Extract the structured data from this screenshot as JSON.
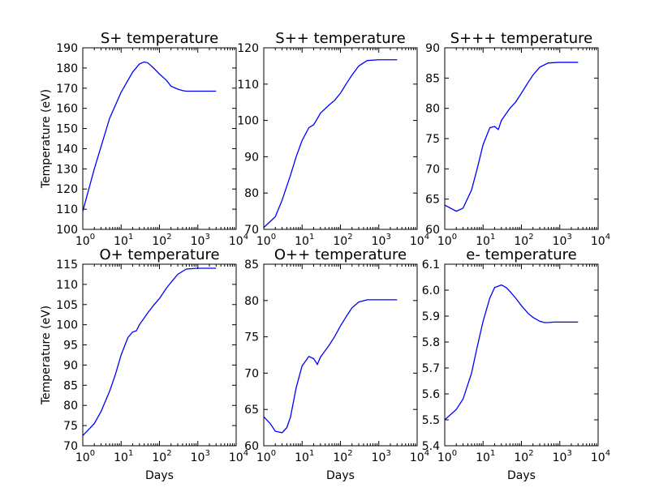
{
  "chart_data": [
    {
      "type": "line",
      "title": "S+ temperature",
      "ylabel": "Temperature (eV)",
      "xlabel": "",
      "xscale": "log",
      "xlim": [
        1,
        10000
      ],
      "ylim": [
        100,
        190
      ],
      "xticks": [
        1,
        10,
        100,
        1000,
        10000
      ],
      "xtick_labels": [
        [
          "10",
          "0"
        ],
        [
          "10",
          "1"
        ],
        [
          "10",
          "2"
        ],
        [
          "10",
          "3"
        ],
        [
          "10",
          "4"
        ]
      ],
      "yticks": [
        100,
        110,
        120,
        130,
        140,
        150,
        160,
        170,
        180,
        190
      ],
      "ytick_labels": [
        "100",
        "110",
        "120",
        "130",
        "140",
        "150",
        "160",
        "170",
        "180",
        "190"
      ],
      "color": "#0000ff",
      "x": [
        1,
        2,
        5,
        10,
        20,
        30,
        40,
        50,
        70,
        100,
        150,
        200,
        300,
        400,
        500,
        700,
        1000,
        3000
      ],
      "y": [
        109,
        130,
        155,
        168,
        178,
        182,
        183,
        182.5,
        180,
        177,
        174,
        171,
        169.5,
        168.8,
        168.5,
        168.5,
        168.5,
        168.5
      ]
    },
    {
      "type": "line",
      "title": "S++ temperature",
      "ylabel": "",
      "xlabel": "",
      "xscale": "log",
      "xlim": [
        1,
        10000
      ],
      "ylim": [
        70,
        120
      ],
      "xticks": [
        1,
        10,
        100,
        1000,
        10000
      ],
      "xtick_labels": [
        [
          "10",
          "0"
        ],
        [
          "10",
          "1"
        ],
        [
          "10",
          "2"
        ],
        [
          "10",
          "3"
        ],
        [
          "10",
          "4"
        ]
      ],
      "yticks": [
        70,
        80,
        90,
        100,
        110,
        120
      ],
      "ytick_labels": [
        "70",
        "80",
        "90",
        "100",
        "110",
        "120"
      ],
      "color": "#0000ff",
      "x": [
        1,
        2,
        3,
        5,
        7,
        10,
        15,
        20,
        25,
        30,
        50,
        70,
        100,
        150,
        200,
        300,
        500,
        1000,
        3000
      ],
      "y": [
        70.5,
        73.5,
        78,
        85,
        90,
        94.5,
        98,
        98.8,
        100.5,
        102,
        104.2,
        105.5,
        107.5,
        110.5,
        112.5,
        115,
        116.5,
        116.7,
        116.7
      ]
    },
    {
      "type": "line",
      "title": "S+++ temperature",
      "ylabel": "",
      "xlabel": "",
      "xscale": "log",
      "xlim": [
        1,
        10000
      ],
      "ylim": [
        60,
        90
      ],
      "xticks": [
        1,
        10,
        100,
        1000,
        10000
      ],
      "xtick_labels": [
        [
          "10",
          "0"
        ],
        [
          "10",
          "1"
        ],
        [
          "10",
          "2"
        ],
        [
          "10",
          "3"
        ],
        [
          "10",
          "4"
        ]
      ],
      "yticks": [
        60,
        65,
        70,
        75,
        80,
        85,
        90
      ],
      "ytick_labels": [
        "60",
        "65",
        "70",
        "75",
        "80",
        "85",
        "90"
      ],
      "color": "#0000ff",
      "x": [
        1,
        2,
        3,
        5,
        7,
        10,
        15,
        20,
        25,
        30,
        50,
        70,
        100,
        150,
        200,
        300,
        500,
        1000,
        3000
      ],
      "y": [
        64,
        63,
        63.5,
        66.5,
        70,
        74,
        76.8,
        77,
        76.5,
        78,
        80,
        81,
        82.5,
        84.3,
        85.5,
        86.8,
        87.5,
        87.6,
        87.6
      ]
    },
    {
      "type": "line",
      "title": "O+ temperature",
      "ylabel": "Temperature (eV)",
      "xlabel": "Days",
      "xscale": "log",
      "xlim": [
        1,
        10000
      ],
      "ylim": [
        70,
        115
      ],
      "xticks": [
        1,
        10,
        100,
        1000,
        10000
      ],
      "xtick_labels": [
        [
          "10",
          "0"
        ],
        [
          "10",
          "1"
        ],
        [
          "10",
          "2"
        ],
        [
          "10",
          "3"
        ],
        [
          "10",
          "4"
        ]
      ],
      "yticks": [
        70,
        75,
        80,
        85,
        90,
        95,
        100,
        105,
        110,
        115
      ],
      "ytick_labels": [
        "70",
        "75",
        "80",
        "85",
        "90",
        "95",
        "100",
        "105",
        "110",
        "115"
      ],
      "color": "#0000ff",
      "x": [
        1,
        2,
        3,
        5,
        7,
        10,
        15,
        20,
        25,
        30,
        50,
        70,
        100,
        150,
        200,
        300,
        500,
        1000,
        3000
      ],
      "y": [
        72.5,
        75.5,
        78.5,
        83.5,
        87.5,
        92.5,
        96.8,
        98.2,
        98.5,
        100,
        103,
        104.8,
        106.5,
        109,
        110.5,
        112.5,
        113.8,
        114,
        114
      ]
    },
    {
      "type": "line",
      "title": "O++ temperature",
      "ylabel": "",
      "xlabel": "Days",
      "xscale": "log",
      "xlim": [
        1,
        10000
      ],
      "ylim": [
        60,
        85
      ],
      "xticks": [
        1,
        10,
        100,
        1000,
        10000
      ],
      "xtick_labels": [
        [
          "10",
          "0"
        ],
        [
          "10",
          "1"
        ],
        [
          "10",
          "2"
        ],
        [
          "10",
          "3"
        ],
        [
          "10",
          "4"
        ]
      ],
      "yticks": [
        60,
        65,
        70,
        75,
        80,
        85
      ],
      "ytick_labels": [
        "60",
        "65",
        "70",
        "75",
        "80",
        "85"
      ],
      "color": "#0000ff",
      "x": [
        1,
        1.5,
        2,
        3,
        4,
        5,
        7,
        10,
        15,
        20,
        25,
        30,
        50,
        70,
        100,
        150,
        200,
        300,
        500,
        1000,
        3000
      ],
      "y": [
        64,
        63,
        62,
        61.8,
        62.5,
        64,
        68,
        71,
        72.3,
        72,
        71.2,
        72.2,
        73.8,
        75,
        76.5,
        78,
        79,
        79.8,
        80.1,
        80.1,
        80.1
      ]
    },
    {
      "type": "line",
      "title": "e- temperature",
      "ylabel": "",
      "xlabel": "Days",
      "xscale": "log",
      "xlim": [
        1,
        10000
      ],
      "ylim": [
        5.4,
        6.1
      ],
      "xticks": [
        1,
        10,
        100,
        1000,
        10000
      ],
      "xtick_labels": [
        [
          "10",
          "0"
        ],
        [
          "10",
          "1"
        ],
        [
          "10",
          "2"
        ],
        [
          "10",
          "3"
        ],
        [
          "10",
          "4"
        ]
      ],
      "yticks": [
        5.4,
        5.5,
        5.6,
        5.7,
        5.8,
        5.9,
        6.0,
        6.1
      ],
      "ytick_labels": [
        "5.4",
        "5.5",
        "5.6",
        "5.7",
        "5.8",
        "5.9",
        "6.0",
        "6.1"
      ],
      "color": "#0000ff",
      "x": [
        1,
        2,
        3,
        5,
        7,
        10,
        15,
        20,
        30,
        40,
        50,
        70,
        100,
        150,
        200,
        300,
        400,
        500,
        700,
        1000,
        3000
      ],
      "y": [
        5.5,
        5.54,
        5.58,
        5.68,
        5.78,
        5.88,
        5.97,
        6.01,
        6.02,
        6.01,
        5.995,
        5.97,
        5.94,
        5.91,
        5.895,
        5.88,
        5.875,
        5.875,
        5.877,
        5.877,
        5.877
      ]
    }
  ]
}
